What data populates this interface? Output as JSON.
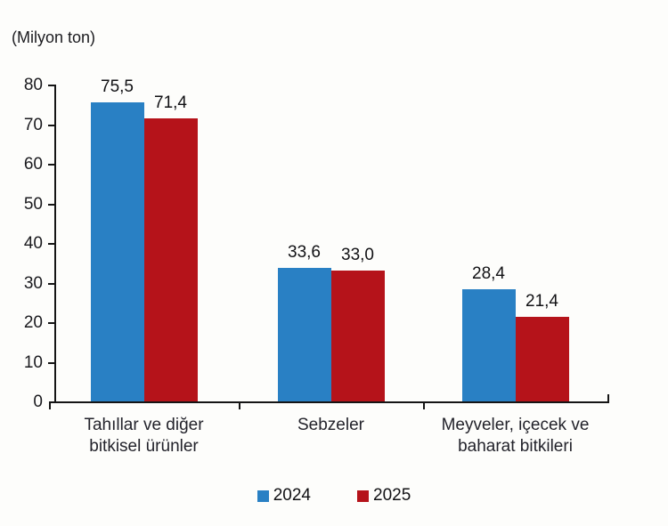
{
  "unit_label": "(Milyon ton)",
  "colors": {
    "series_2024": "#2980C4",
    "series_2025": "#B5131A",
    "axis": "#151515",
    "background": "#fdfdfb"
  },
  "legend": {
    "position": "bottom",
    "items": [
      {
        "label": "2024",
        "color": "#2980C4"
      },
      {
        "label": "2025",
        "color": "#B5131A"
      }
    ]
  },
  "chart_data": {
    "type": "bar",
    "title": "",
    "xlabel": "",
    "ylabel": "(Milyon ton)",
    "ylim": [
      0,
      80
    ],
    "yticks": [
      0,
      10,
      20,
      30,
      40,
      50,
      60,
      70,
      80
    ],
    "grid": false,
    "legend_position": "bottom",
    "categories": [
      [
        "Tahıllar ve diğer",
        "bitkisel ürünler"
      ],
      [
        "Sebzeler"
      ],
      [
        "Meyveler, içecek ve",
        "baharat  bitkileri"
      ]
    ],
    "series": [
      {
        "name": "2024",
        "color": "#2980C4",
        "values": [
          75.5,
          33.6,
          28.4
        ],
        "value_labels": [
          "75,5",
          "33,6",
          "28,4"
        ]
      },
      {
        "name": "2025",
        "color": "#B5131A",
        "values": [
          71.4,
          33.0,
          21.4
        ],
        "value_labels": [
          "71,4",
          "33,0",
          "21,4"
        ]
      }
    ]
  }
}
